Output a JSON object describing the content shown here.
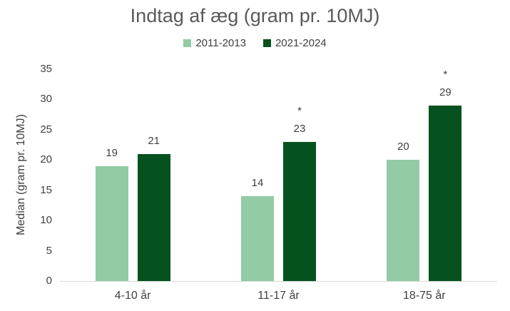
{
  "chart_data": {
    "type": "bar",
    "title": "Indtag af æg (gram pr. 10MJ)",
    "ylabel": "Median (gram pr. 10MJ)",
    "categories": [
      "4-10 år",
      "11-17 år",
      "18-75 år"
    ],
    "series": [
      {
        "name": "2011-2013",
        "color": "#92cba4",
        "values": [
          19,
          14,
          20
        ],
        "significance": [
          "",
          "",
          ""
        ]
      },
      {
        "name": "2021-2024",
        "color": "#06521f",
        "values": [
          21,
          23,
          29
        ],
        "significance": [
          "",
          "*",
          "*"
        ]
      }
    ],
    "ylim": [
      0,
      35
    ],
    "yticks": [
      0,
      5,
      10,
      15,
      20,
      25,
      30,
      35
    ],
    "grid": false,
    "legend_position": "top-center"
  },
  "colors": {
    "title_text": "#595959",
    "axis_text": "#404040",
    "axis_line": "#d9d9d9",
    "background": "#ffffff",
    "series_light_green": "#92cba4",
    "series_dark_green": "#06521f"
  }
}
